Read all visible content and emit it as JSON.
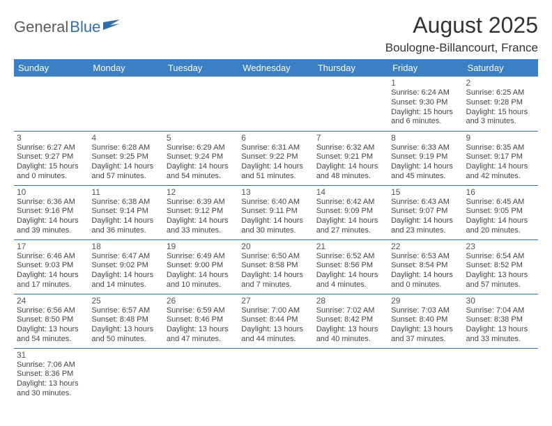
{
  "logo": {
    "part1": "General",
    "part2": "Blue"
  },
  "title": "August 2025",
  "subtitle": "Boulogne-Billancourt, France",
  "colors": {
    "header_bg": "#3b7fc4",
    "header_fg": "#ffffff",
    "row_border": "#2e6fab",
    "logo_gray": "#5a5a5a",
    "logo_blue": "#2e6fab",
    "text": "#444444"
  },
  "dayNames": [
    "Sunday",
    "Monday",
    "Tuesday",
    "Wednesday",
    "Thursday",
    "Friday",
    "Saturday"
  ],
  "weeks": [
    [
      null,
      null,
      null,
      null,
      null,
      {
        "d": "1",
        "sr": "Sunrise: 6:24 AM",
        "ss": "Sunset: 9:30 PM",
        "dl1": "Daylight: 15 hours",
        "dl2": "and 6 minutes."
      },
      {
        "d": "2",
        "sr": "Sunrise: 6:25 AM",
        "ss": "Sunset: 9:28 PM",
        "dl1": "Daylight: 15 hours",
        "dl2": "and 3 minutes."
      }
    ],
    [
      {
        "d": "3",
        "sr": "Sunrise: 6:27 AM",
        "ss": "Sunset: 9:27 PM",
        "dl1": "Daylight: 15 hours",
        "dl2": "and 0 minutes."
      },
      {
        "d": "4",
        "sr": "Sunrise: 6:28 AM",
        "ss": "Sunset: 9:25 PM",
        "dl1": "Daylight: 14 hours",
        "dl2": "and 57 minutes."
      },
      {
        "d": "5",
        "sr": "Sunrise: 6:29 AM",
        "ss": "Sunset: 9:24 PM",
        "dl1": "Daylight: 14 hours",
        "dl2": "and 54 minutes."
      },
      {
        "d": "6",
        "sr": "Sunrise: 6:31 AM",
        "ss": "Sunset: 9:22 PM",
        "dl1": "Daylight: 14 hours",
        "dl2": "and 51 minutes."
      },
      {
        "d": "7",
        "sr": "Sunrise: 6:32 AM",
        "ss": "Sunset: 9:21 PM",
        "dl1": "Daylight: 14 hours",
        "dl2": "and 48 minutes."
      },
      {
        "d": "8",
        "sr": "Sunrise: 6:33 AM",
        "ss": "Sunset: 9:19 PM",
        "dl1": "Daylight: 14 hours",
        "dl2": "and 45 minutes."
      },
      {
        "d": "9",
        "sr": "Sunrise: 6:35 AM",
        "ss": "Sunset: 9:17 PM",
        "dl1": "Daylight: 14 hours",
        "dl2": "and 42 minutes."
      }
    ],
    [
      {
        "d": "10",
        "sr": "Sunrise: 6:36 AM",
        "ss": "Sunset: 9:16 PM",
        "dl1": "Daylight: 14 hours",
        "dl2": "and 39 minutes."
      },
      {
        "d": "11",
        "sr": "Sunrise: 6:38 AM",
        "ss": "Sunset: 9:14 PM",
        "dl1": "Daylight: 14 hours",
        "dl2": "and 36 minutes."
      },
      {
        "d": "12",
        "sr": "Sunrise: 6:39 AM",
        "ss": "Sunset: 9:12 PM",
        "dl1": "Daylight: 14 hours",
        "dl2": "and 33 minutes."
      },
      {
        "d": "13",
        "sr": "Sunrise: 6:40 AM",
        "ss": "Sunset: 9:11 PM",
        "dl1": "Daylight: 14 hours",
        "dl2": "and 30 minutes."
      },
      {
        "d": "14",
        "sr": "Sunrise: 6:42 AM",
        "ss": "Sunset: 9:09 PM",
        "dl1": "Daylight: 14 hours",
        "dl2": "and 27 minutes."
      },
      {
        "d": "15",
        "sr": "Sunrise: 6:43 AM",
        "ss": "Sunset: 9:07 PM",
        "dl1": "Daylight: 14 hours",
        "dl2": "and 23 minutes."
      },
      {
        "d": "16",
        "sr": "Sunrise: 6:45 AM",
        "ss": "Sunset: 9:05 PM",
        "dl1": "Daylight: 14 hours",
        "dl2": "and 20 minutes."
      }
    ],
    [
      {
        "d": "17",
        "sr": "Sunrise: 6:46 AM",
        "ss": "Sunset: 9:03 PM",
        "dl1": "Daylight: 14 hours",
        "dl2": "and 17 minutes."
      },
      {
        "d": "18",
        "sr": "Sunrise: 6:47 AM",
        "ss": "Sunset: 9:02 PM",
        "dl1": "Daylight: 14 hours",
        "dl2": "and 14 minutes."
      },
      {
        "d": "19",
        "sr": "Sunrise: 6:49 AM",
        "ss": "Sunset: 9:00 PM",
        "dl1": "Daylight: 14 hours",
        "dl2": "and 10 minutes."
      },
      {
        "d": "20",
        "sr": "Sunrise: 6:50 AM",
        "ss": "Sunset: 8:58 PM",
        "dl1": "Daylight: 14 hours",
        "dl2": "and 7 minutes."
      },
      {
        "d": "21",
        "sr": "Sunrise: 6:52 AM",
        "ss": "Sunset: 8:56 PM",
        "dl1": "Daylight: 14 hours",
        "dl2": "and 4 minutes."
      },
      {
        "d": "22",
        "sr": "Sunrise: 6:53 AM",
        "ss": "Sunset: 8:54 PM",
        "dl1": "Daylight: 14 hours",
        "dl2": "and 0 minutes."
      },
      {
        "d": "23",
        "sr": "Sunrise: 6:54 AM",
        "ss": "Sunset: 8:52 PM",
        "dl1": "Daylight: 13 hours",
        "dl2": "and 57 minutes."
      }
    ],
    [
      {
        "d": "24",
        "sr": "Sunrise: 6:56 AM",
        "ss": "Sunset: 8:50 PM",
        "dl1": "Daylight: 13 hours",
        "dl2": "and 54 minutes."
      },
      {
        "d": "25",
        "sr": "Sunrise: 6:57 AM",
        "ss": "Sunset: 8:48 PM",
        "dl1": "Daylight: 13 hours",
        "dl2": "and 50 minutes."
      },
      {
        "d": "26",
        "sr": "Sunrise: 6:59 AM",
        "ss": "Sunset: 8:46 PM",
        "dl1": "Daylight: 13 hours",
        "dl2": "and 47 minutes."
      },
      {
        "d": "27",
        "sr": "Sunrise: 7:00 AM",
        "ss": "Sunset: 8:44 PM",
        "dl1": "Daylight: 13 hours",
        "dl2": "and 44 minutes."
      },
      {
        "d": "28",
        "sr": "Sunrise: 7:02 AM",
        "ss": "Sunset: 8:42 PM",
        "dl1": "Daylight: 13 hours",
        "dl2": "and 40 minutes."
      },
      {
        "d": "29",
        "sr": "Sunrise: 7:03 AM",
        "ss": "Sunset: 8:40 PM",
        "dl1": "Daylight: 13 hours",
        "dl2": "and 37 minutes."
      },
      {
        "d": "30",
        "sr": "Sunrise: 7:04 AM",
        "ss": "Sunset: 8:38 PM",
        "dl1": "Daylight: 13 hours",
        "dl2": "and 33 minutes."
      }
    ],
    [
      {
        "d": "31",
        "sr": "Sunrise: 7:06 AM",
        "ss": "Sunset: 8:36 PM",
        "dl1": "Daylight: 13 hours",
        "dl2": "and 30 minutes."
      },
      null,
      null,
      null,
      null,
      null,
      null
    ]
  ]
}
